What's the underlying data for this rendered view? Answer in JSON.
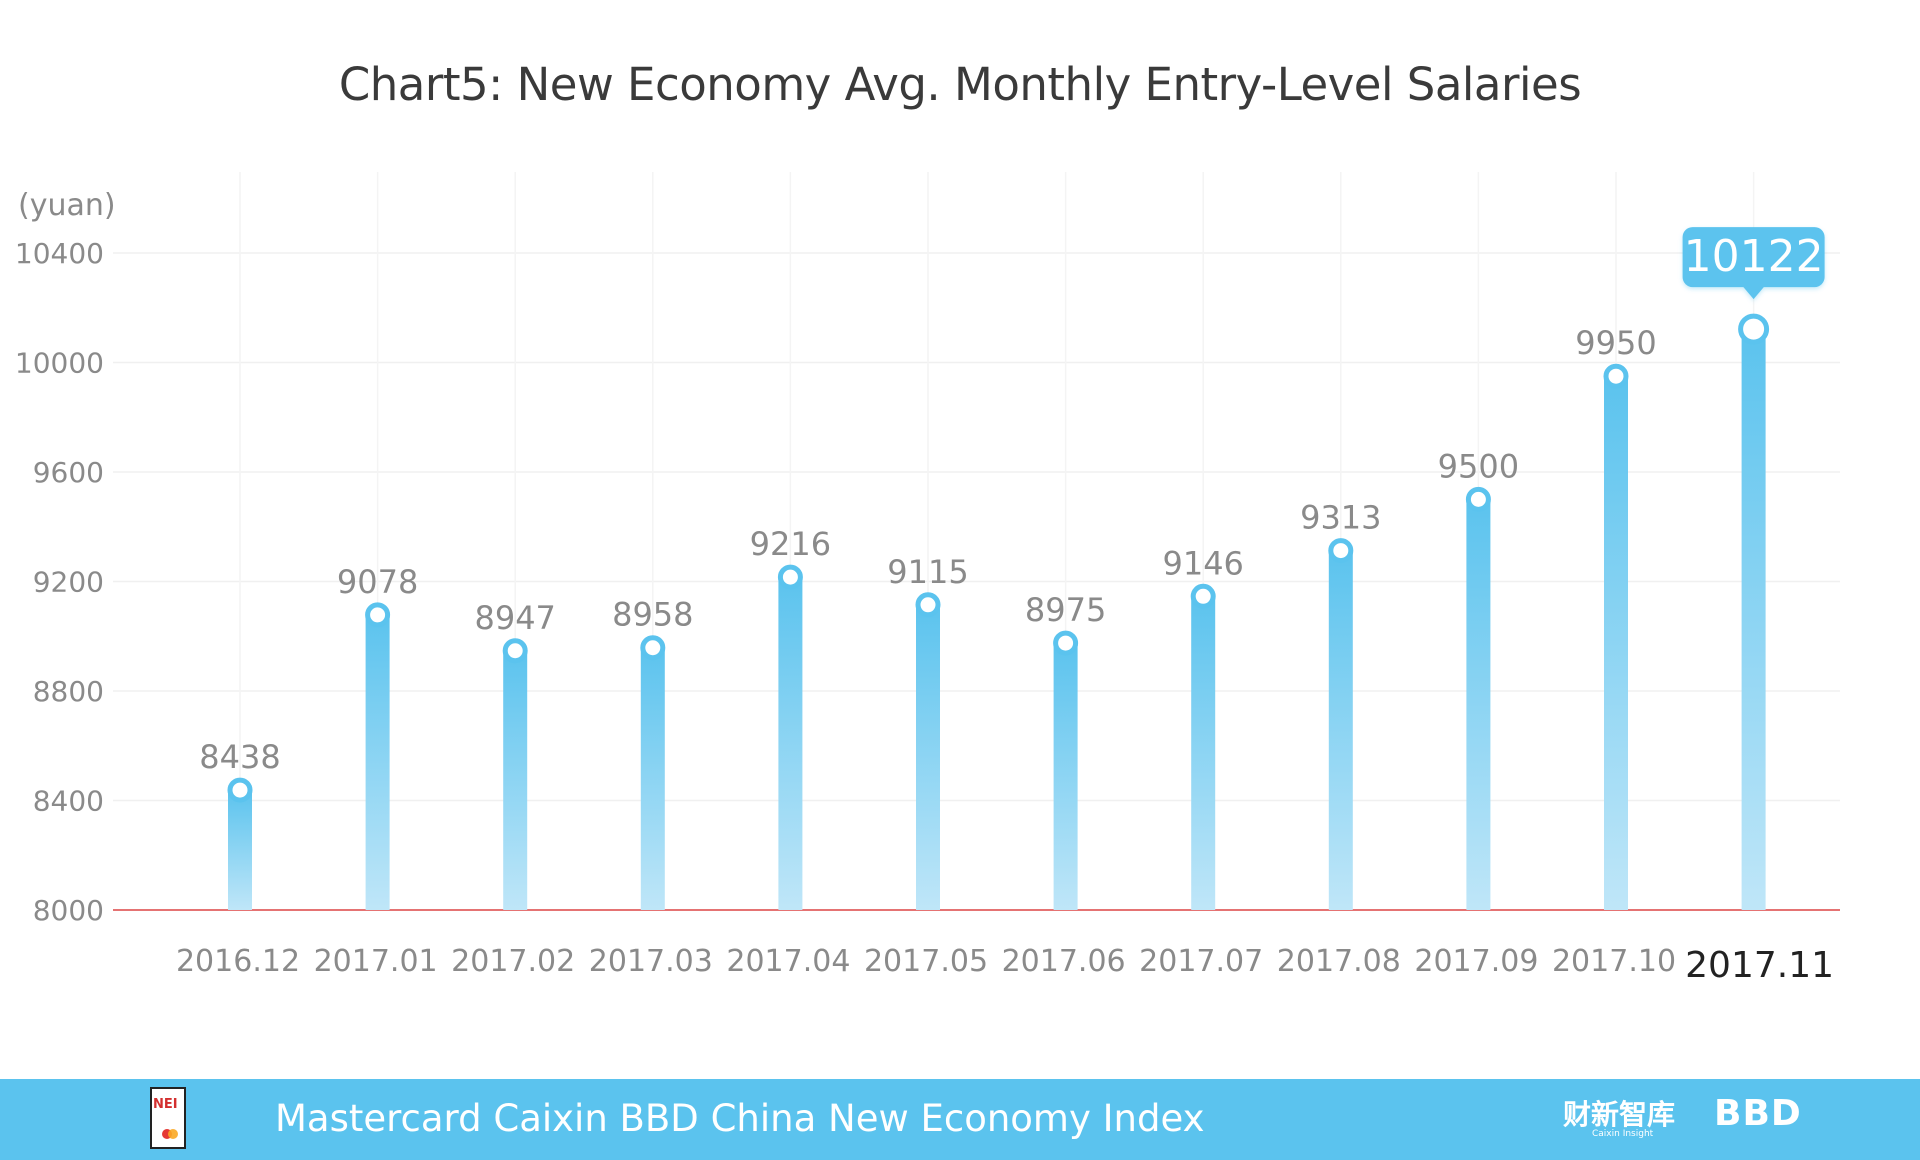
{
  "chart_data": {
    "type": "bar",
    "title": "Chart5:  New Economy Avg. Monthly Entry-Level Salaries",
    "ylabel": "(yuan)",
    "xlabel": "",
    "categories": [
      "2016.12",
      "2017.01",
      "2017.02",
      "2017.03",
      "2017.04",
      "2017.05",
      "2017.06",
      "2017.07",
      "2017.08",
      "2017.09",
      "2017.10",
      "2017.11"
    ],
    "values": [
      8438,
      9078,
      8947,
      8958,
      9216,
      9115,
      8975,
      9146,
      9313,
      9500,
      9950,
      10122
    ],
    "value_labels": [
      "8438",
      "9078",
      "8947",
      "8958",
      "9216",
      "9115",
      "8975",
      "9146",
      "9313",
      "9500",
      "9950",
      "10122"
    ],
    "ylim": [
      8000,
      10400
    ],
    "yticks": [
      8000,
      8400,
      8800,
      9200,
      9600,
      10000,
      10400
    ],
    "ytick_labels": [
      "8000",
      "8400",
      "8800",
      "9200",
      "9600",
      "10000",
      "10400"
    ],
    "highlight_index": 11,
    "grid": true,
    "colors": {
      "bar_top": "#5bc3ee",
      "bar_bottom": "#bfe6f8",
      "baseline": "#e57373",
      "grid": "#f0f0f0",
      "label": "#8a8a8a",
      "callout": "#5bc3ee"
    }
  },
  "footer": {
    "text": "Mastercard Caixin BBD China New Economy Index",
    "logo_left": "NEI",
    "logo_caixin": "财新智库",
    "logo_caixin_sub": "Caixin Insight",
    "logo_bbd": "BBD"
  }
}
